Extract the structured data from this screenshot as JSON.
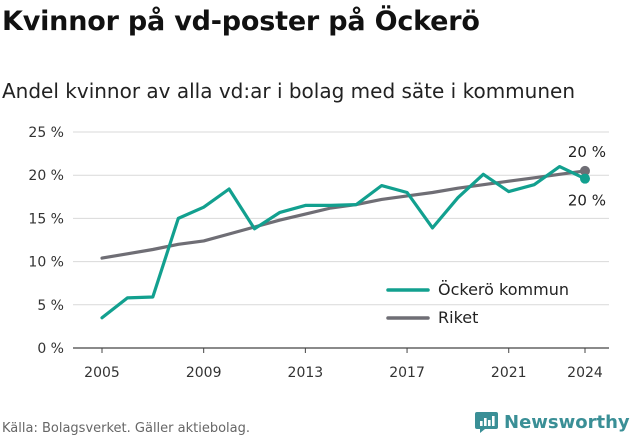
{
  "header": {
    "title": "Kvinnor på vd-poster på Öckerö",
    "subtitle": "Andel kvinnor av alla vd:ar i bolag med säte i kommunen"
  },
  "footer": {
    "source": "Källa: Bolagsverket. Gäller aktiebolag.",
    "brand": "Newsworthy"
  },
  "colors": {
    "ockero": "#12a08f",
    "riket": "#6f6e75",
    "grid": "#d9d9d9",
    "brand": "#3a8f96"
  },
  "icons": {
    "brand_logo": "newsworthy-logo-icon"
  },
  "chart_data": {
    "type": "line",
    "title": "Kvinnor på vd-poster på Öckerö",
    "subtitle": "Andel kvinnor av alla vd:ar i bolag med säte i kommunen",
    "xlabel": "",
    "ylabel": "",
    "x": [
      2005,
      2006,
      2007,
      2008,
      2009,
      2010,
      2011,
      2012,
      2013,
      2014,
      2015,
      2016,
      2017,
      2018,
      2019,
      2020,
      2021,
      2022,
      2023,
      2024
    ],
    "xticks": [
      2005,
      2009,
      2013,
      2017,
      2021,
      2024
    ],
    "yticks": [
      0,
      5,
      10,
      15,
      20,
      25
    ],
    "ytick_labels": [
      "0 %",
      "5 %",
      "10 %",
      "15 %",
      "20 %",
      "25 %"
    ],
    "ylim": [
      0,
      25
    ],
    "xlim": [
      2005,
      2024
    ],
    "grid": "horizontal",
    "legend_position": "bottom-right",
    "series": [
      {
        "name": "Öckerö kommun",
        "color": "#12a08f",
        "values": [
          3.5,
          5.8,
          5.9,
          15.0,
          16.3,
          18.4,
          13.8,
          15.7,
          16.5,
          16.5,
          16.6,
          18.8,
          18.0,
          13.9,
          17.4,
          20.1,
          18.1,
          18.9,
          21.0,
          19.6
        ],
        "end_label": "20 %"
      },
      {
        "name": "Riket",
        "color": "#6f6e75",
        "values": [
          10.4,
          10.9,
          11.4,
          12.0,
          12.4,
          13.2,
          14.0,
          14.8,
          15.5,
          16.2,
          16.6,
          17.2,
          17.6,
          18.0,
          18.5,
          18.9,
          19.3,
          19.7,
          20.1,
          20.5
        ],
        "end_label": "20 %"
      }
    ]
  }
}
